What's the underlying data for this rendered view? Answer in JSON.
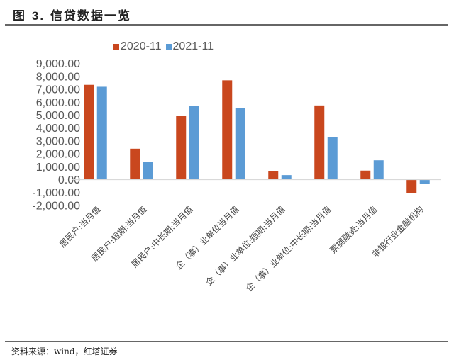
{
  "figure": {
    "title_prefix": "图 ",
    "title_number": "3.",
    "title_text": " 信贷数据一览",
    "source": "资料来源：wind，红塔证券"
  },
  "colors": {
    "series_2020": "#C9471E",
    "series_2021": "#5B9BD5",
    "axis": "#D9D9D9"
  },
  "legend": [
    {
      "label": "2020-11",
      "color": "#C9471E"
    },
    {
      "label": "2021-11",
      "color": "#5B9BD5"
    }
  ],
  "chart_data": {
    "type": "bar",
    "title": "信贷数据一览",
    "xlabel": "",
    "ylabel": "",
    "ylim": [
      -2000,
      9000
    ],
    "yticks": [
      9000,
      8000,
      7000,
      6000,
      5000,
      4000,
      3000,
      2000,
      1000,
      0,
      -1000,
      -2000
    ],
    "ytick_labels": [
      "9,000.00",
      "8,000.00",
      "7,000.00",
      "6,000.00",
      "5,000.00",
      "4,000.00",
      "3,000.00",
      "2,000.00",
      "1,000.00",
      "0.00",
      "-1,000.00",
      "-2,000.00"
    ],
    "grid": false,
    "legend_position": "top",
    "categories": [
      "居民户:当月值",
      "居民户:短期:当月值",
      "居民户:中长期:当月值",
      "企（事）业单位当月值",
      "企（事）业单位:短期:当月值",
      "企（事）业单位:中长期:当月值",
      "票据融资:当月值",
      "非银行业金融机构"
    ],
    "series": [
      {
        "name": "2020-11",
        "values": [
          7350,
          2400,
          4950,
          7700,
          650,
          5750,
          700,
          -1050
        ]
      },
      {
        "name": "2021-11",
        "values": [
          7200,
          1400,
          5700,
          5550,
          350,
          3300,
          1500,
          -350
        ]
      }
    ]
  }
}
